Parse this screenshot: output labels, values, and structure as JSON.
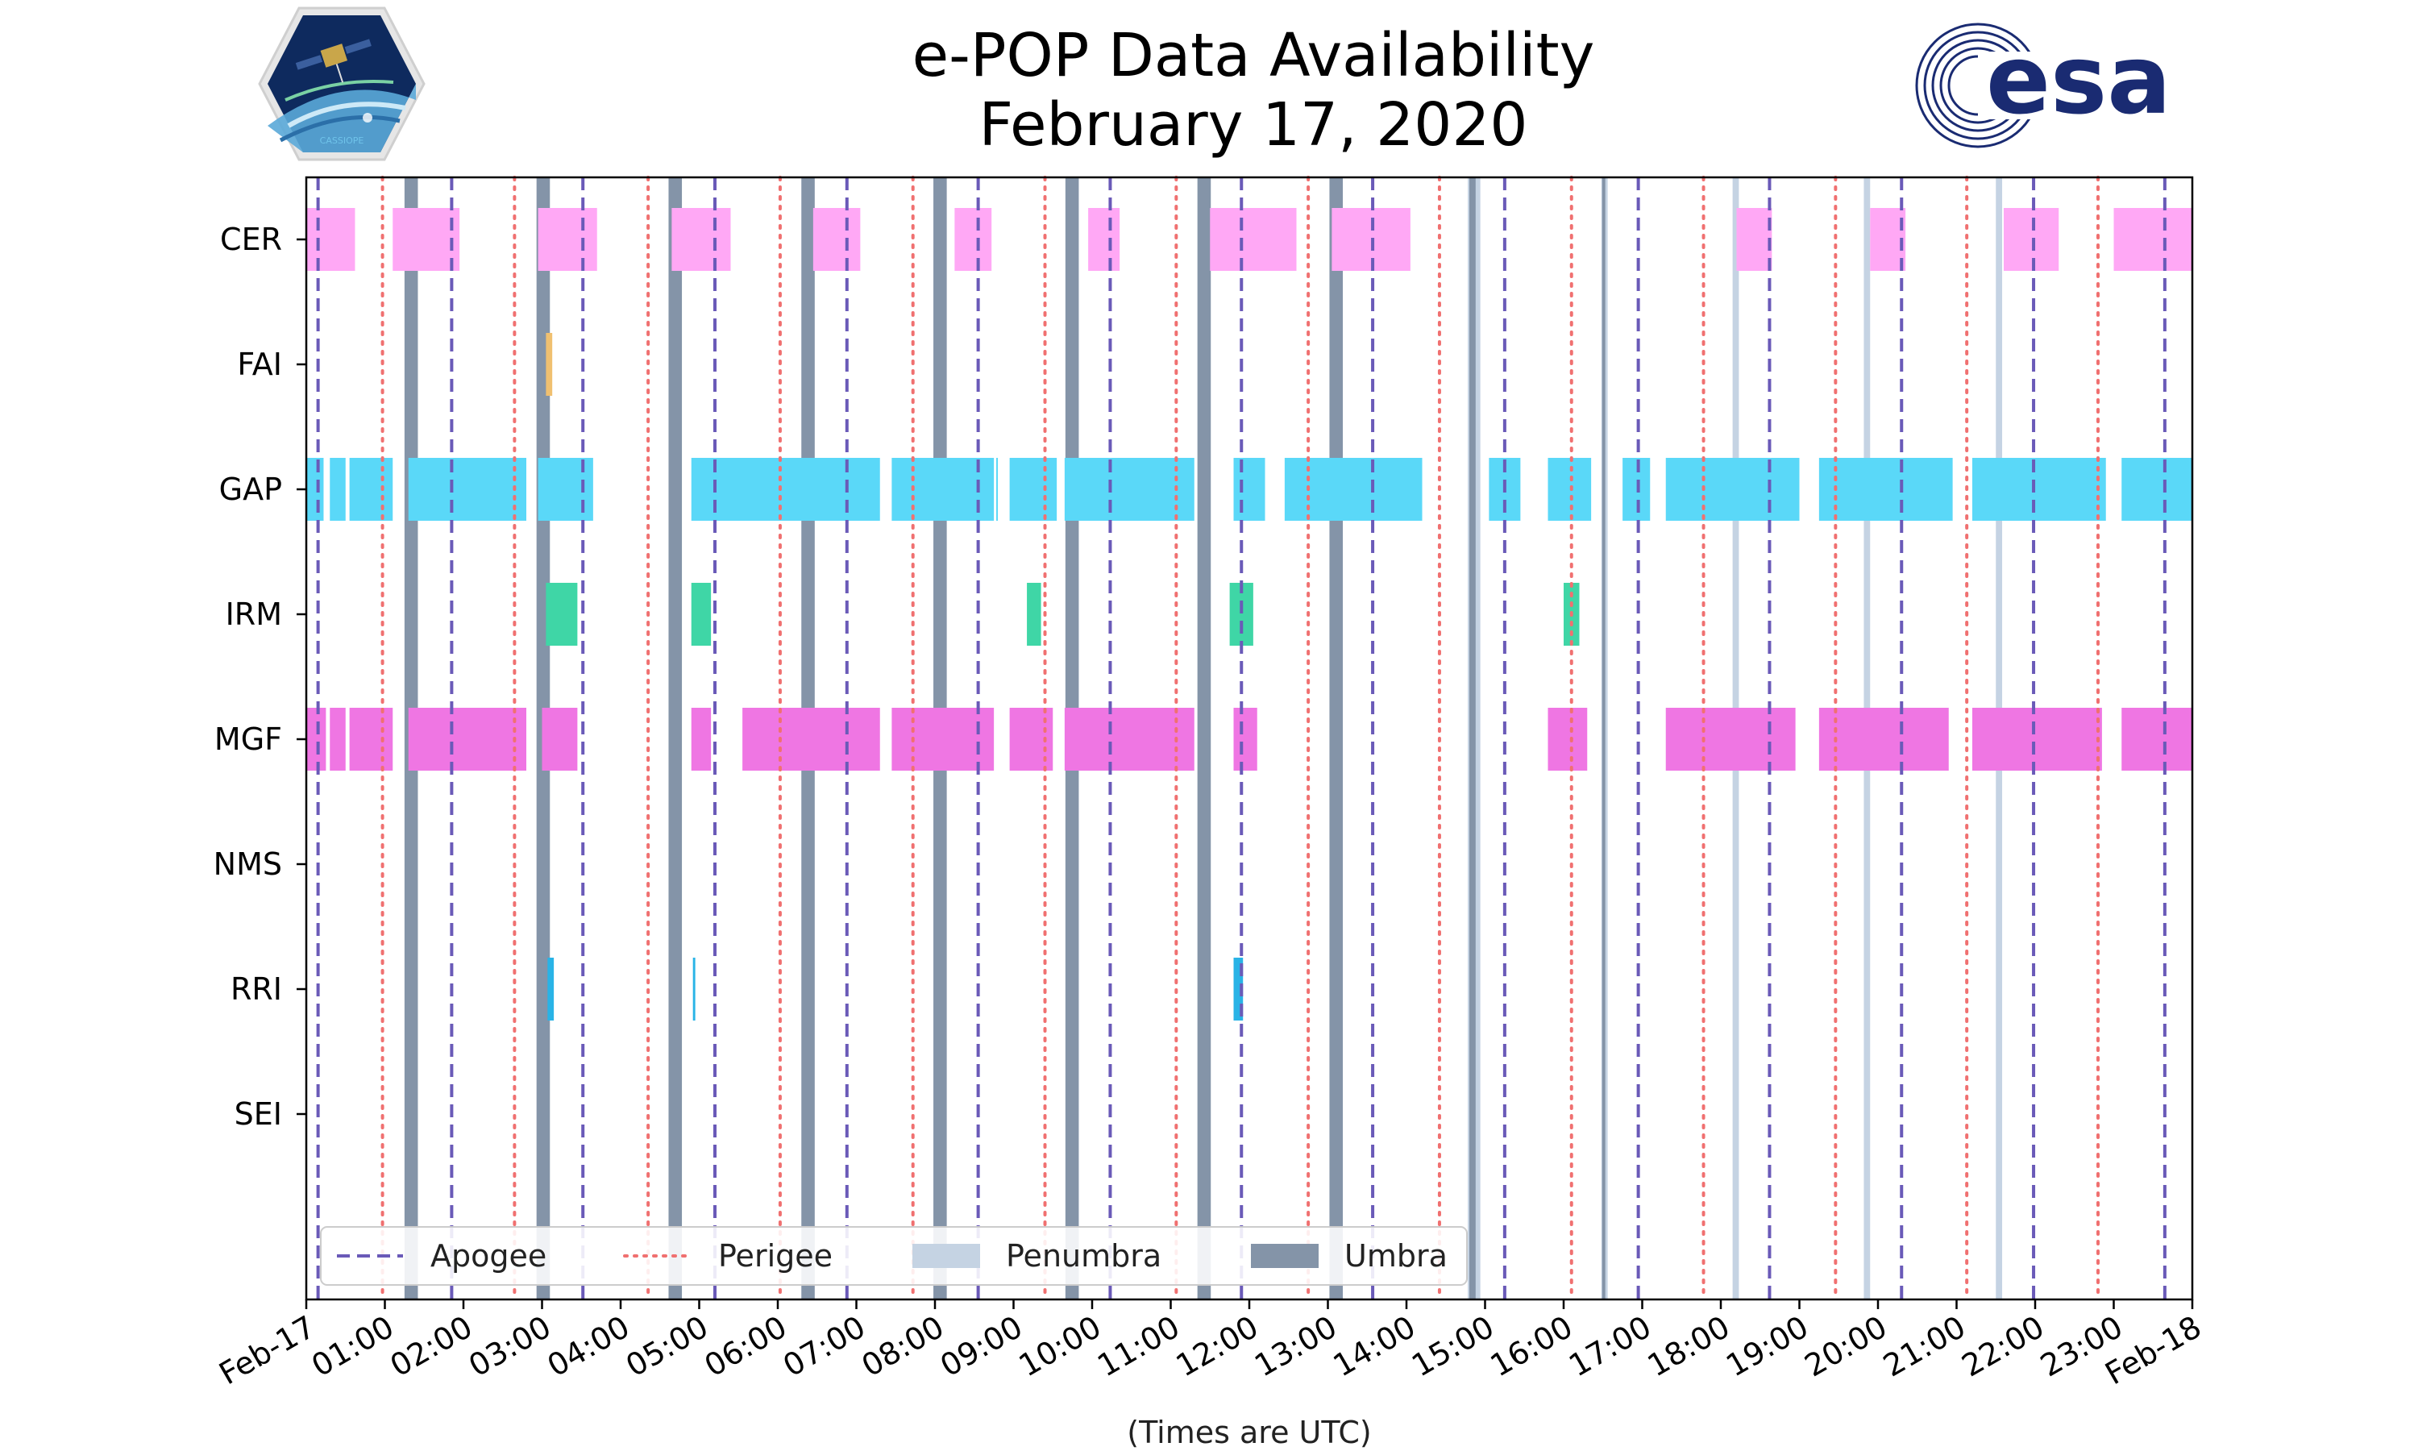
{
  "title": {
    "line1": "e-POP Data Availability",
    "line2": "February 17, 2020"
  },
  "logos": {
    "left": {
      "text": "CASSIOPE",
      "icon": "cassiope-mission-patch"
    },
    "right": {
      "text": "esa",
      "icon": "esa-logo"
    }
  },
  "chart_data": {
    "type": "timeline",
    "title": "e-POP Data Availability February 17, 2020",
    "xlabel": "(Times are UTC)",
    "xlim_hours": [
      0,
      24
    ],
    "x_tick_labels": [
      "Feb-17",
      "01:00",
      "02:00",
      "03:00",
      "04:00",
      "05:00",
      "06:00",
      "07:00",
      "08:00",
      "09:00",
      "10:00",
      "11:00",
      "12:00",
      "13:00",
      "14:00",
      "15:00",
      "16:00",
      "17:00",
      "18:00",
      "19:00",
      "20:00",
      "21:00",
      "22:00",
      "23:00",
      "Feb-18"
    ],
    "instruments": [
      "CER",
      "FAI",
      "GAP",
      "IRM",
      "MGF",
      "NMS",
      "RRI",
      "SEI"
    ],
    "colors": {
      "CER": "#ffa8f5",
      "FAI": "#f0c070",
      "GAP": "#5ad8f8",
      "IRM": "#3fd6a6",
      "MGF": "#ef76e3",
      "NMS": "#888888",
      "RRI": "#29b3e6",
      "SEI": "#888888",
      "apogee": "#6a5ab8",
      "perigee": "#f07070",
      "penumbra": "#c5d3e3",
      "umbra": "#8494a8"
    },
    "intervals": {
      "CER": [
        [
          0.0,
          0.62
        ],
        [
          1.1,
          1.95
        ],
        [
          2.95,
          3.7
        ],
        [
          4.65,
          5.4
        ],
        [
          6.45,
          7.05
        ],
        [
          8.25,
          8.72
        ],
        [
          9.95,
          10.35
        ],
        [
          11.5,
          12.6
        ],
        [
          13.05,
          14.05
        ],
        [
          18.2,
          18.65
        ],
        [
          19.9,
          20.35
        ],
        [
          21.6,
          22.3
        ],
        [
          23.0,
          24.0
        ]
      ],
      "FAI": [
        [
          3.05,
          3.13
        ]
      ],
      "GAP": [
        [
          0.0,
          0.22
        ],
        [
          0.3,
          0.5
        ],
        [
          0.55,
          1.1
        ],
        [
          1.3,
          2.8
        ],
        [
          2.95,
          3.65
        ],
        [
          4.9,
          7.3
        ],
        [
          7.45,
          8.75
        ],
        [
          8.78,
          8.8
        ],
        [
          8.95,
          9.55
        ],
        [
          9.65,
          11.3
        ],
        [
          11.8,
          12.2
        ],
        [
          12.45,
          14.2
        ],
        [
          15.05,
          15.45
        ],
        [
          15.8,
          16.35
        ],
        [
          16.75,
          17.1
        ],
        [
          17.3,
          19.0
        ],
        [
          19.25,
          20.95
        ],
        [
          21.2,
          22.9
        ],
        [
          23.1,
          24.0
        ]
      ],
      "IRM": [
        [
          3.05,
          3.45
        ],
        [
          4.9,
          5.15
        ],
        [
          9.17,
          9.35
        ],
        [
          11.75,
          12.05
        ],
        [
          16.0,
          16.2
        ]
      ],
      "MGF": [
        [
          0.0,
          0.25
        ],
        [
          0.3,
          0.5
        ],
        [
          0.55,
          1.1
        ],
        [
          1.3,
          2.8
        ],
        [
          3.0,
          3.45
        ],
        [
          4.9,
          5.15
        ],
        [
          5.55,
          7.3
        ],
        [
          7.45,
          8.75
        ],
        [
          8.95,
          9.5
        ],
        [
          9.65,
          11.3
        ],
        [
          11.8,
          12.1
        ],
        [
          15.8,
          16.3
        ],
        [
          17.3,
          18.95
        ],
        [
          19.25,
          20.9
        ],
        [
          21.2,
          22.85
        ],
        [
          23.1,
          24.0
        ]
      ],
      "NMS": [],
      "RRI": [
        [
          3.07,
          3.15
        ],
        [
          4.92,
          4.95
        ],
        [
          11.8,
          11.92
        ]
      ],
      "SEI": []
    },
    "apogee_hours": [
      0.15,
      1.85,
      3.52,
      5.2,
      6.88,
      8.55,
      10.23,
      11.9,
      13.57,
      15.25,
      16.95,
      18.62,
      20.3,
      21.98,
      23.65
    ],
    "perigee_hours": [
      0.97,
      2.65,
      4.35,
      6.03,
      7.72,
      9.4,
      11.07,
      12.75,
      14.42,
      16.1,
      17.78,
      19.46,
      21.13,
      22.8
    ],
    "penumbra_intervals": [
      [
        14.78,
        14.94
      ],
      [
        16.48,
        16.56
      ],
      [
        18.15,
        18.23
      ],
      [
        19.82,
        19.9
      ],
      [
        21.5,
        21.58
      ]
    ],
    "umbra_intervals": [
      [
        1.25,
        1.42
      ],
      [
        2.93,
        3.1
      ],
      [
        4.61,
        4.78
      ],
      [
        6.3,
        6.47
      ],
      [
        7.98,
        8.15
      ],
      [
        9.66,
        9.83
      ],
      [
        11.34,
        11.51
      ],
      [
        13.02,
        13.19
      ],
      [
        14.8,
        14.88
      ],
      [
        16.49,
        16.53
      ]
    ],
    "legend": {
      "entries": [
        "Apogee",
        "Perigee",
        "Penumbra",
        "Umbra"
      ],
      "placement": "lower-left"
    }
  }
}
